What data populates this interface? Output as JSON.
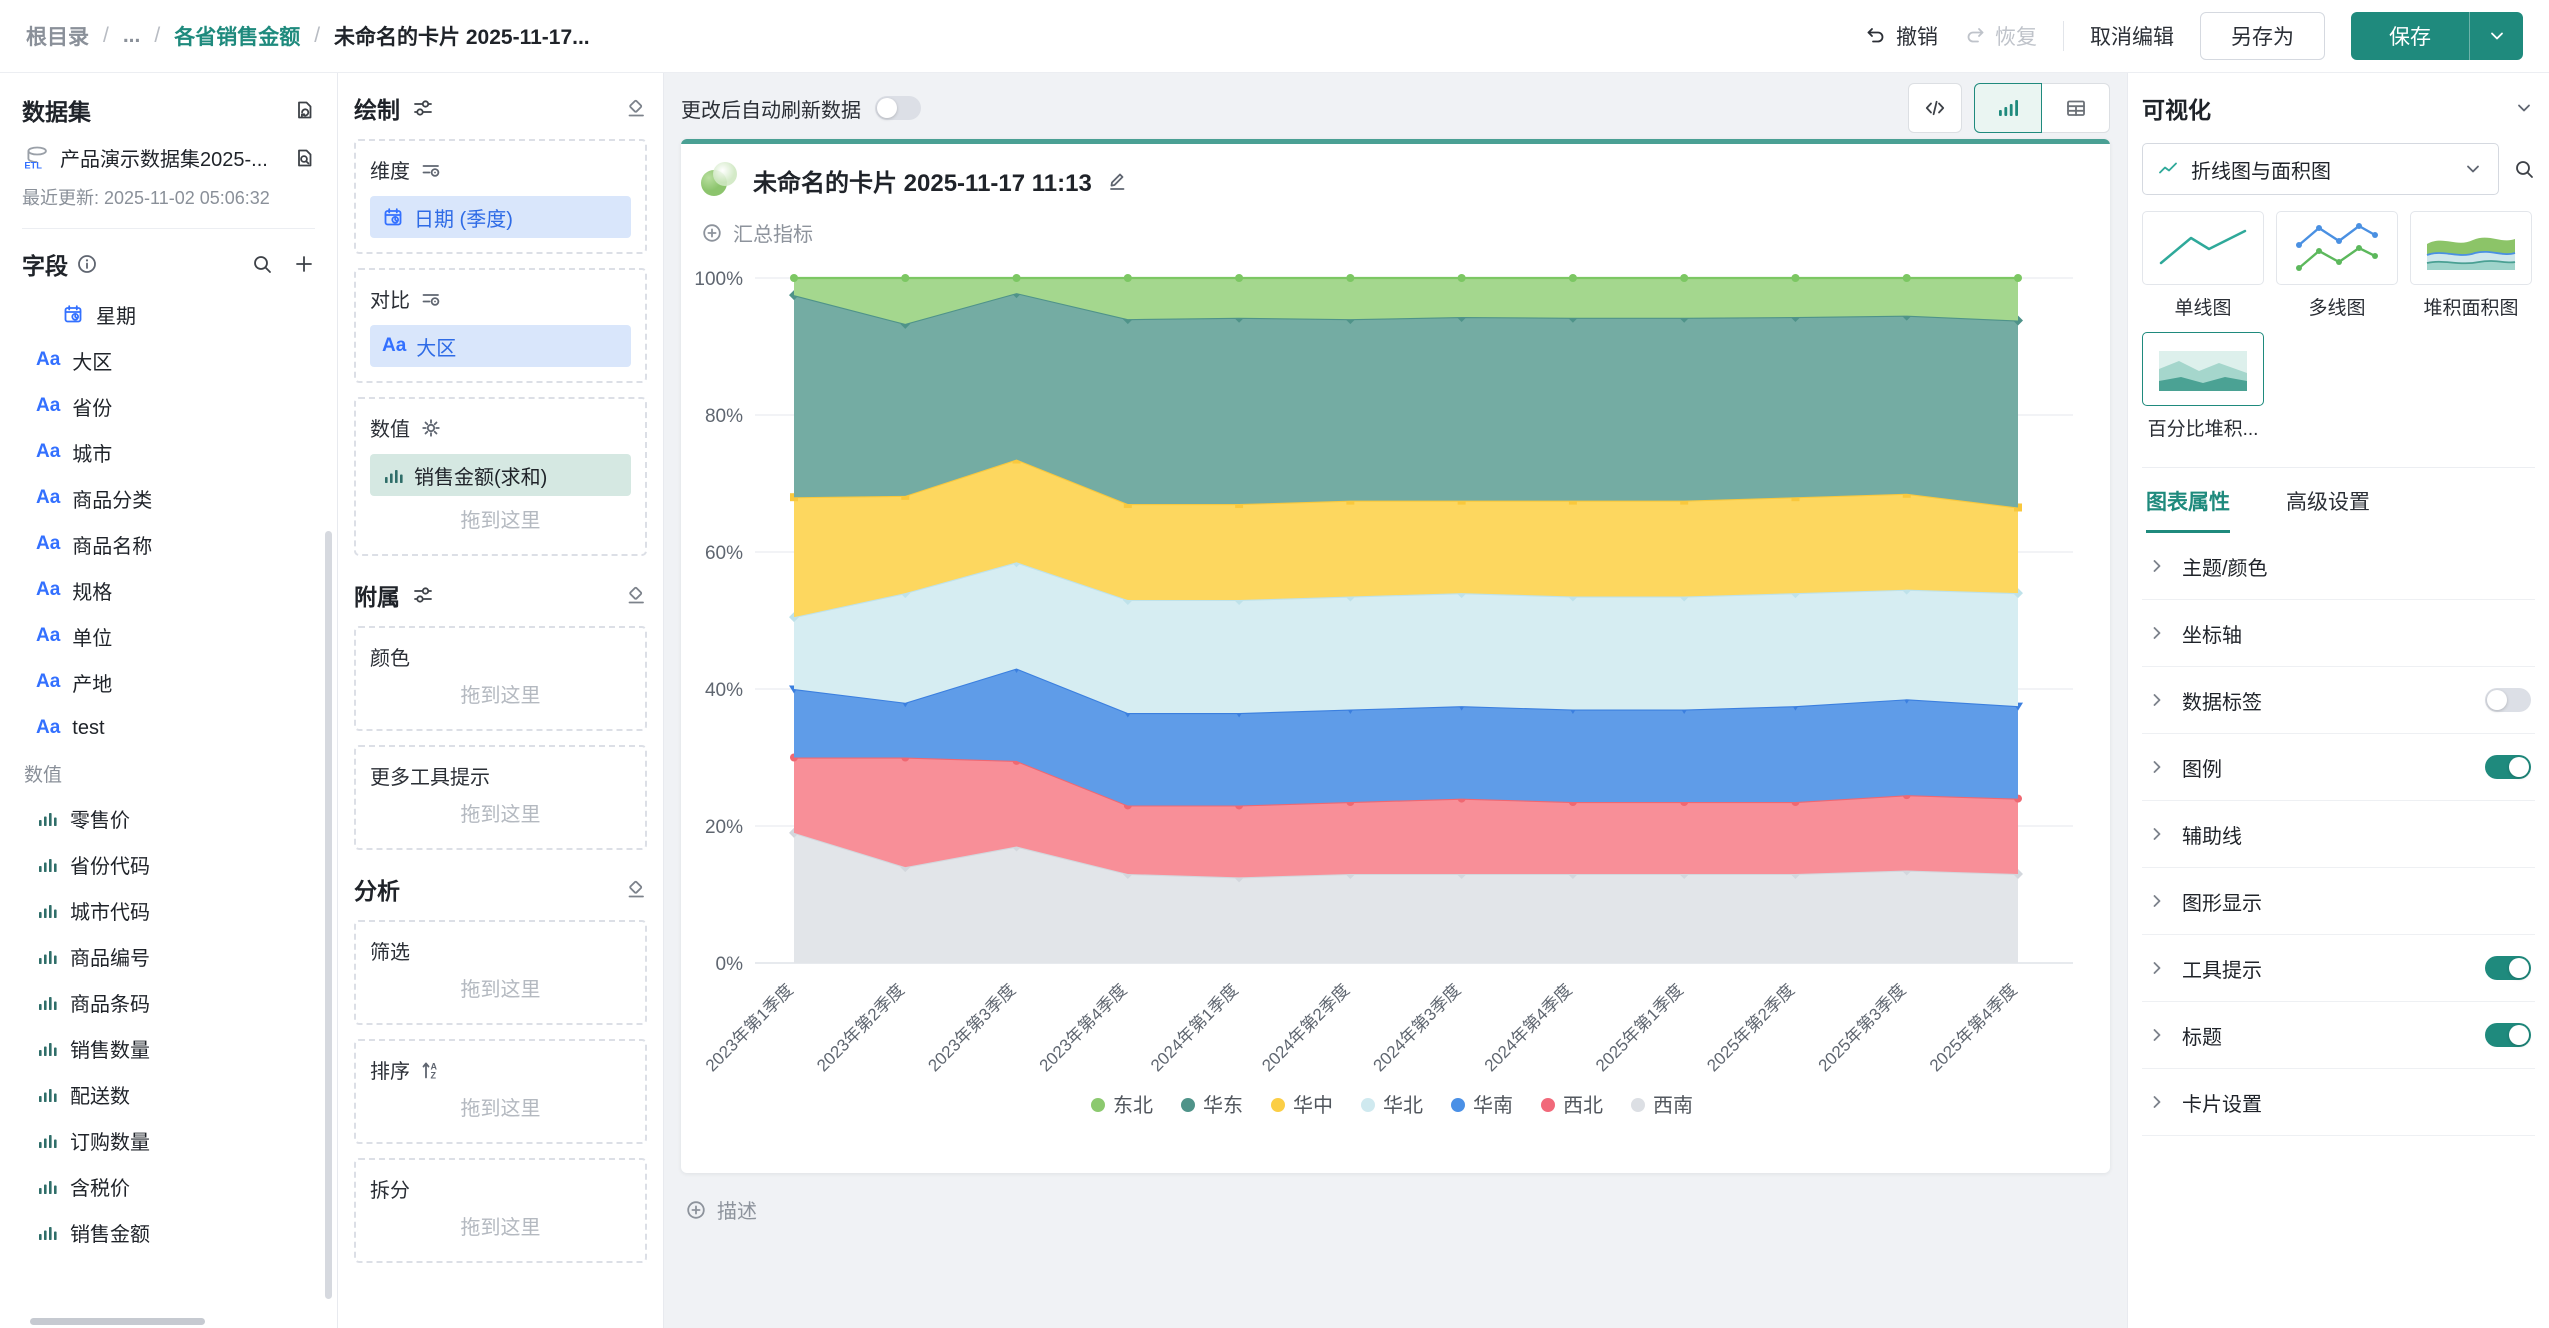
{
  "theme": {
    "accent": "#1f8a7d",
    "card_top_bar": "#4aa094",
    "canvas_bg": "#f0f2f5",
    "chip_blue_bg": "#d9e6fb",
    "chip_blue_text": "#2e6be6",
    "chip_green_bg": "#d5e8e2"
  },
  "icons": {
    "aa_glyph": "Aa",
    "etl_label": "ETL",
    "sort_a": "A",
    "sort_z": "Z"
  },
  "topbar": {
    "breadcrumb": [
      {
        "label": "根目录",
        "type": "link"
      },
      {
        "label": "...",
        "type": "link"
      },
      {
        "label": "各省销售金额",
        "type": "link-active"
      },
      {
        "label": "未命名的卡片 2025-11-17...",
        "type": "current"
      }
    ],
    "breadcrumb_separator": "/",
    "undo": "撤销",
    "redo": "恢复",
    "cancel_edit": "取消编辑",
    "save_as": "另存为",
    "save": "保存"
  },
  "sidebar": {
    "dataset_title": "数据集",
    "dataset_name": "产品演示数据集2025-...",
    "last_updated": "最近更新: 2025-11-02 05:06:32",
    "fields_title": "字段",
    "measures_group_label": "数值",
    "dimension_fields": [
      {
        "icon": "calendar-clock-icon",
        "label": "星期",
        "indent": true
      },
      {
        "icon": "text-field-icon",
        "label": "大区"
      },
      {
        "icon": "text-field-icon",
        "label": "省份"
      },
      {
        "icon": "text-field-icon",
        "label": "城市"
      },
      {
        "icon": "text-field-icon",
        "label": "商品分类"
      },
      {
        "icon": "text-field-icon",
        "label": "商品名称"
      },
      {
        "icon": "text-field-icon",
        "label": "规格"
      },
      {
        "icon": "text-field-icon",
        "label": "单位"
      },
      {
        "icon": "text-field-icon",
        "label": "产地"
      },
      {
        "icon": "text-field-icon",
        "label": "test"
      }
    ],
    "measure_fields": [
      {
        "icon": "bar-chart-icon",
        "label": "零售价"
      },
      {
        "icon": "bar-chart-icon",
        "label": "省份代码"
      },
      {
        "icon": "bar-chart-icon",
        "label": "城市代码"
      },
      {
        "icon": "bar-chart-icon",
        "label": "商品编号"
      },
      {
        "icon": "bar-chart-icon",
        "label": "商品条码"
      },
      {
        "icon": "bar-chart-icon",
        "label": "销售数量"
      },
      {
        "icon": "bar-chart-icon",
        "label": "配送数"
      },
      {
        "icon": "bar-chart-icon",
        "label": "订购数量"
      },
      {
        "icon": "bar-chart-icon",
        "label": "含税价"
      },
      {
        "icon": "bar-chart-icon",
        "label": "销售金额"
      }
    ]
  },
  "draw_panel": {
    "title": "绘制",
    "attach_title": "附属",
    "analysis_title": "分析",
    "drop_hint": "拖到这里",
    "main_sections": [
      {
        "key": "dimension",
        "label": "维度",
        "header_icon": "filter-sort-icon",
        "chips": [
          {
            "icon": "calendar-clock-icon",
            "label": "日期 (季度)",
            "variant": "blue"
          }
        ],
        "placeholder": false
      },
      {
        "key": "compare",
        "label": "对比",
        "header_icon": "filter-sort-icon",
        "chips": [
          {
            "icon": "text-field-icon",
            "label": "大区",
            "variant": "blue"
          }
        ],
        "placeholder": false
      },
      {
        "key": "value",
        "label": "数值",
        "header_icon": "gear-icon",
        "chips": [
          {
            "icon": "bar-chart-icon",
            "label": "销售金额(求和)",
            "variant": "green"
          }
        ],
        "placeholder": true
      }
    ],
    "attach_sections": [
      {
        "key": "color",
        "label": "颜色",
        "placeholder": true
      },
      {
        "key": "more-tooltip",
        "label": "更多工具提示",
        "placeholder": true
      }
    ],
    "analysis_sections": [
      {
        "key": "filter",
        "label": "筛选",
        "placeholder": true
      },
      {
        "key": "sort",
        "label": "排序",
        "header_icon": "sort-az-icon",
        "placeholder": true
      },
      {
        "key": "split",
        "label": "拆分",
        "placeholder": true
      }
    ]
  },
  "canvas": {
    "auto_refresh_label": "更改后自动刷新数据",
    "auto_refresh_on": false,
    "card_title": "未命名的卡片 2025-11-17 11:13",
    "summary_label": "汇总指标",
    "description_label": "描述"
  },
  "viz": {
    "title": "可视化",
    "type_select_value": "折线图与面积图",
    "chart_types": [
      {
        "key": "single-line",
        "label": "单线图",
        "selected": false
      },
      {
        "key": "multi-line",
        "label": "多线图",
        "selected": false
      },
      {
        "key": "stacked-area",
        "label": "堆积面积图",
        "selected": false
      },
      {
        "key": "percent-stacked-area",
        "label": "百分比堆积...",
        "selected": true
      }
    ],
    "tabs": [
      {
        "key": "chart-props",
        "label": "图表属性",
        "active": true
      },
      {
        "key": "advanced",
        "label": "高级设置",
        "active": false
      }
    ],
    "properties": [
      {
        "key": "theme-color",
        "label": "主题/颜色"
      },
      {
        "key": "axis",
        "label": "坐标轴"
      },
      {
        "key": "data-label",
        "label": "数据标签",
        "toggle": false
      },
      {
        "key": "legend",
        "label": "图例",
        "toggle": true
      },
      {
        "key": "assist-line",
        "label": "辅助线"
      },
      {
        "key": "graphic-display",
        "label": "图形显示"
      },
      {
        "key": "tooltip",
        "label": "工具提示",
        "toggle": true
      },
      {
        "key": "title",
        "label": "标题",
        "toggle": true
      },
      {
        "key": "card-settings",
        "label": "卡片设置"
      }
    ]
  },
  "chart_data": {
    "type": "area",
    "stacked": "percent",
    "title": "未命名的卡片 2025-11-17 11:13",
    "categories": [
      "2023年第1季度",
      "2023年第2季度",
      "2023年第3季度",
      "2023年第4季度",
      "2024年第1季度",
      "2024年第2季度",
      "2024年第3季度",
      "2024年第4季度",
      "2025年第1季度",
      "2025年第2季度",
      "2025年第3季度",
      "2025年第4季度"
    ],
    "ylabel": "",
    "xlabel": "",
    "ylim": [
      0,
      100
    ],
    "yticks": [
      0,
      20,
      40,
      60,
      80,
      100
    ],
    "y_unit": "%",
    "grid": true,
    "legend_position": "bottom",
    "series": [
      {
        "name": "西南",
        "fill": "#e2e5e9",
        "line": "#d3d7dd",
        "marker": "diamond",
        "values": [
          19,
          14,
          17,
          13,
          12.5,
          13,
          13,
          13,
          13,
          13,
          13.5,
          13
        ]
      },
      {
        "name": "西北",
        "fill": "#f88f98",
        "line": "#ef6872",
        "marker": "circle",
        "values": [
          11,
          16,
          12.5,
          10,
          10.5,
          10.5,
          11,
          10.5,
          10.5,
          10.5,
          11,
          11
        ]
      },
      {
        "name": "华南",
        "fill": "#5f9ce8",
        "line": "#3b7fdf",
        "marker": "triangle-down",
        "values": [
          10,
          8,
          13.5,
          13.5,
          13.5,
          13.5,
          13.5,
          13.5,
          13.5,
          14,
          14,
          13.5
        ]
      },
      {
        "name": "华北",
        "fill": "#d6edf2",
        "line": "#bfe2ea",
        "marker": "diamond",
        "values": [
          10.5,
          16,
          15.5,
          16.5,
          16.5,
          16.5,
          16.5,
          16.5,
          16.5,
          16.5,
          16,
          16.5
        ]
      },
      {
        "name": "华中",
        "fill": "#fdd75f",
        "line": "#f9c83d",
        "marker": "square",
        "values": [
          17.5,
          14.2,
          15,
          14,
          14,
          14,
          13.5,
          14,
          14,
          14,
          14,
          12.5
        ]
      },
      {
        "name": "华东",
        "fill": "#74aca3",
        "line": "#4f9389",
        "marker": "diamond",
        "values": [
          29.5,
          25.1,
          24.3,
          27,
          27.2,
          26.5,
          26.8,
          26.7,
          26.7,
          26.3,
          26,
          27.3
        ]
      },
      {
        "name": "东北",
        "fill": "#a4d78e",
        "line": "#7cc763",
        "marker": "circle",
        "values": [
          2.5,
          6.7,
          2.2,
          6,
          5.8,
          6,
          5.7,
          5.8,
          5.8,
          5.7,
          5.5,
          6.2
        ]
      }
    ],
    "legend": [
      {
        "name": "东北",
        "color": "#8cc96f"
      },
      {
        "name": "华东",
        "color": "#4f9389"
      },
      {
        "name": "华中",
        "color": "#fbce45"
      },
      {
        "name": "华北",
        "color": "#cfe9ef"
      },
      {
        "name": "华南",
        "color": "#4a90e6"
      },
      {
        "name": "西北",
        "color": "#f1697a"
      },
      {
        "name": "西南",
        "color": "#dcdfe4"
      }
    ]
  }
}
